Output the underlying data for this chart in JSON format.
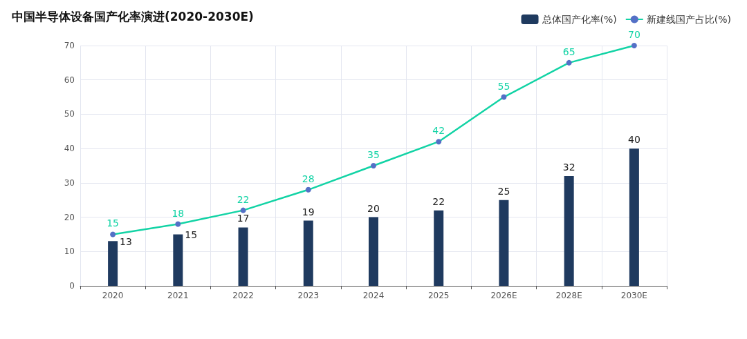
{
  "chart_data": {
    "type": "bar",
    "title": "中国半导体设备国产化率演进(2020-2030E)",
    "categories": [
      "2020",
      "2021",
      "2022",
      "2023",
      "2024",
      "2025",
      "2026E",
      "2028E",
      "2030E"
    ],
    "series": [
      {
        "name": "总体国产化率(%)",
        "color": "#1f3a5f",
        "values": [
          13,
          15,
          17,
          19,
          20,
          22,
          25,
          32,
          40
        ]
      },
      {
        "name": "新建线国产占比(%)",
        "type": "line",
        "color": "#12d3a5",
        "values": [
          15,
          18,
          22,
          28,
          35,
          42,
          55,
          65,
          70
        ]
      }
    ],
    "ylim": [
      0,
      70
    ],
    "yticks": [
      0,
      10,
      20,
      30,
      40,
      50,
      60,
      70
    ],
    "grid": true,
    "legend": "top right",
    "marker": "circle",
    "line_style": "solid",
    "data_labels": true
  }
}
